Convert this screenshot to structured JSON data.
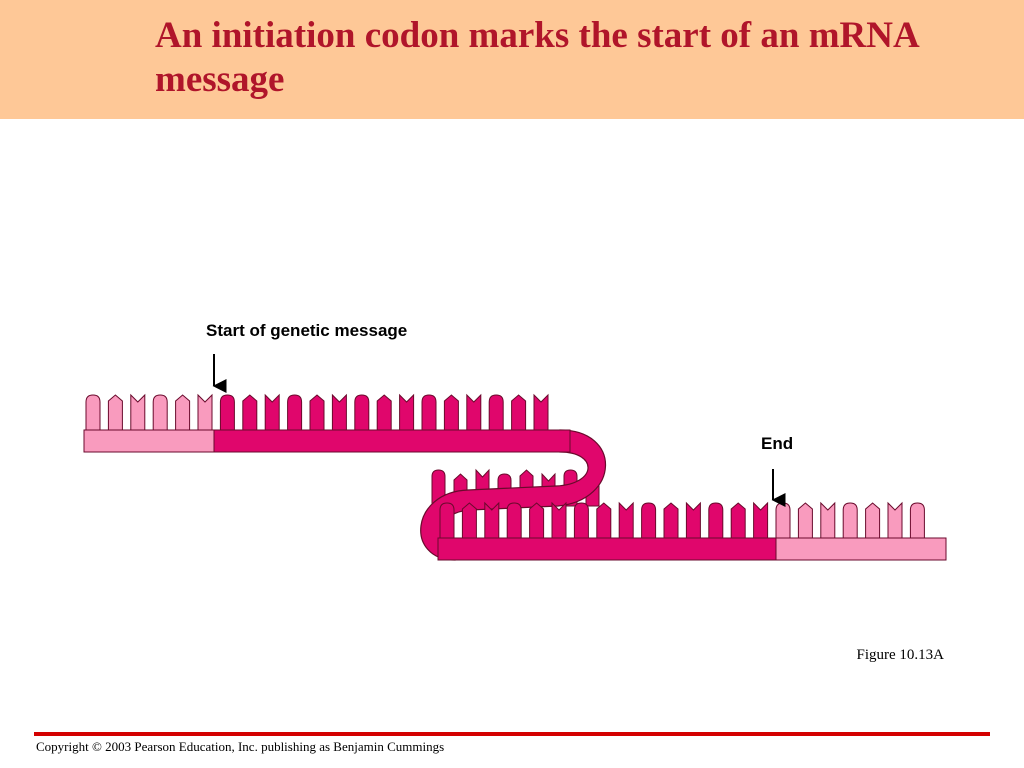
{
  "slide": {
    "title": "An initiation codon marks the start of an mRNA message",
    "figure_label": "Figure 10.13A",
    "copyright": "Copyright © 2003 Pearson Education, Inc. publishing as Benjamin Cummings"
  },
  "diagram": {
    "labels": {
      "start": "Start of genetic message",
      "end": "End"
    },
    "colors": {
      "title_bar": "#fec897",
      "title_text": "#b0152a",
      "coding_region": "#e0066c",
      "noncoding_region": "#f99bbe",
      "outline": "#6a0a2c",
      "rule": "#d40000"
    }
  }
}
